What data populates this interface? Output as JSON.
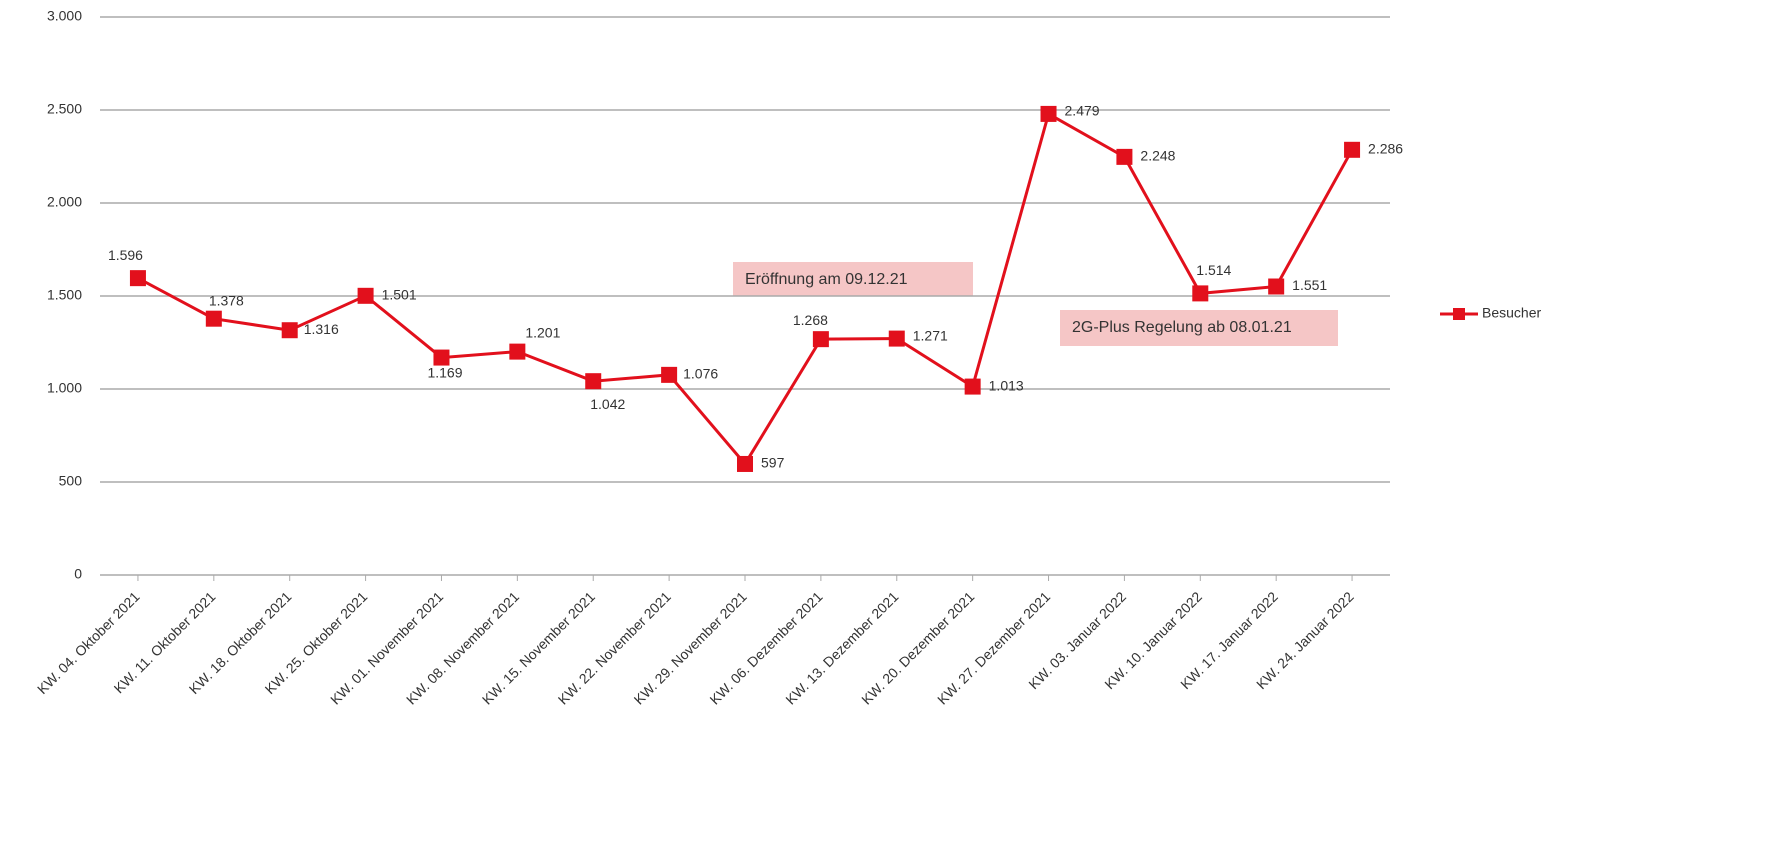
{
  "chart_data": {
    "type": "line",
    "categories": [
      "KW. 04. Oktober 2021",
      "KW. 11. Oktober 2021",
      "KW. 18. Oktober 2021",
      "KW. 25. Oktober 2021",
      "KW. 01. November 2021",
      "KW. 08. November 2021",
      "KW. 15. November 2021",
      "KW. 22. November 2021",
      "KW. 29. November 2021",
      "KW. 06. Dezember 2021",
      "KW. 13. Dezember 2021",
      "KW. 20. Dezember 2021",
      "KW. 27. Dezember 2021",
      "KW. 03. Januar 2022",
      "KW. 10. Januar 2022",
      "KW. 17. Januar 2022",
      "KW. 24. Januar 2022"
    ],
    "series": [
      {
        "name": "Besucher",
        "color": "#e2101c",
        "values": [
          1596,
          1378,
          1316,
          1501,
          1169,
          1201,
          1042,
          1076,
          597,
          1268,
          1271,
          1013,
          2479,
          2248,
          1514,
          1551,
          2286
        ],
        "value_labels": [
          "1.596",
          "1.378",
          "1.316",
          "1.501",
          "1.169",
          "1.201",
          "1.042",
          "1.076",
          "597",
          "1.268",
          "1.271",
          "1.013",
          "2.479",
          "2.248",
          "1.514",
          "1.551",
          "2.286"
        ]
      }
    ],
    "ylim": [
      0,
      3000
    ],
    "yticks": [
      0,
      500,
      {
        "value": 1000,
        "label": "1.000"
      },
      {
        "value": 1500,
        "label": "1.500"
      },
      {
        "value": 2000,
        "label": "2.000"
      },
      {
        "value": 2500,
        "label": "2.500"
      },
      {
        "value": 3000,
        "label": "3.000"
      }
    ],
    "grid": true,
    "legend": "right",
    "annotations": [
      "Eröffnung am 09.12.21",
      "2G-Plus Regelung ab 08.01.21"
    ]
  }
}
